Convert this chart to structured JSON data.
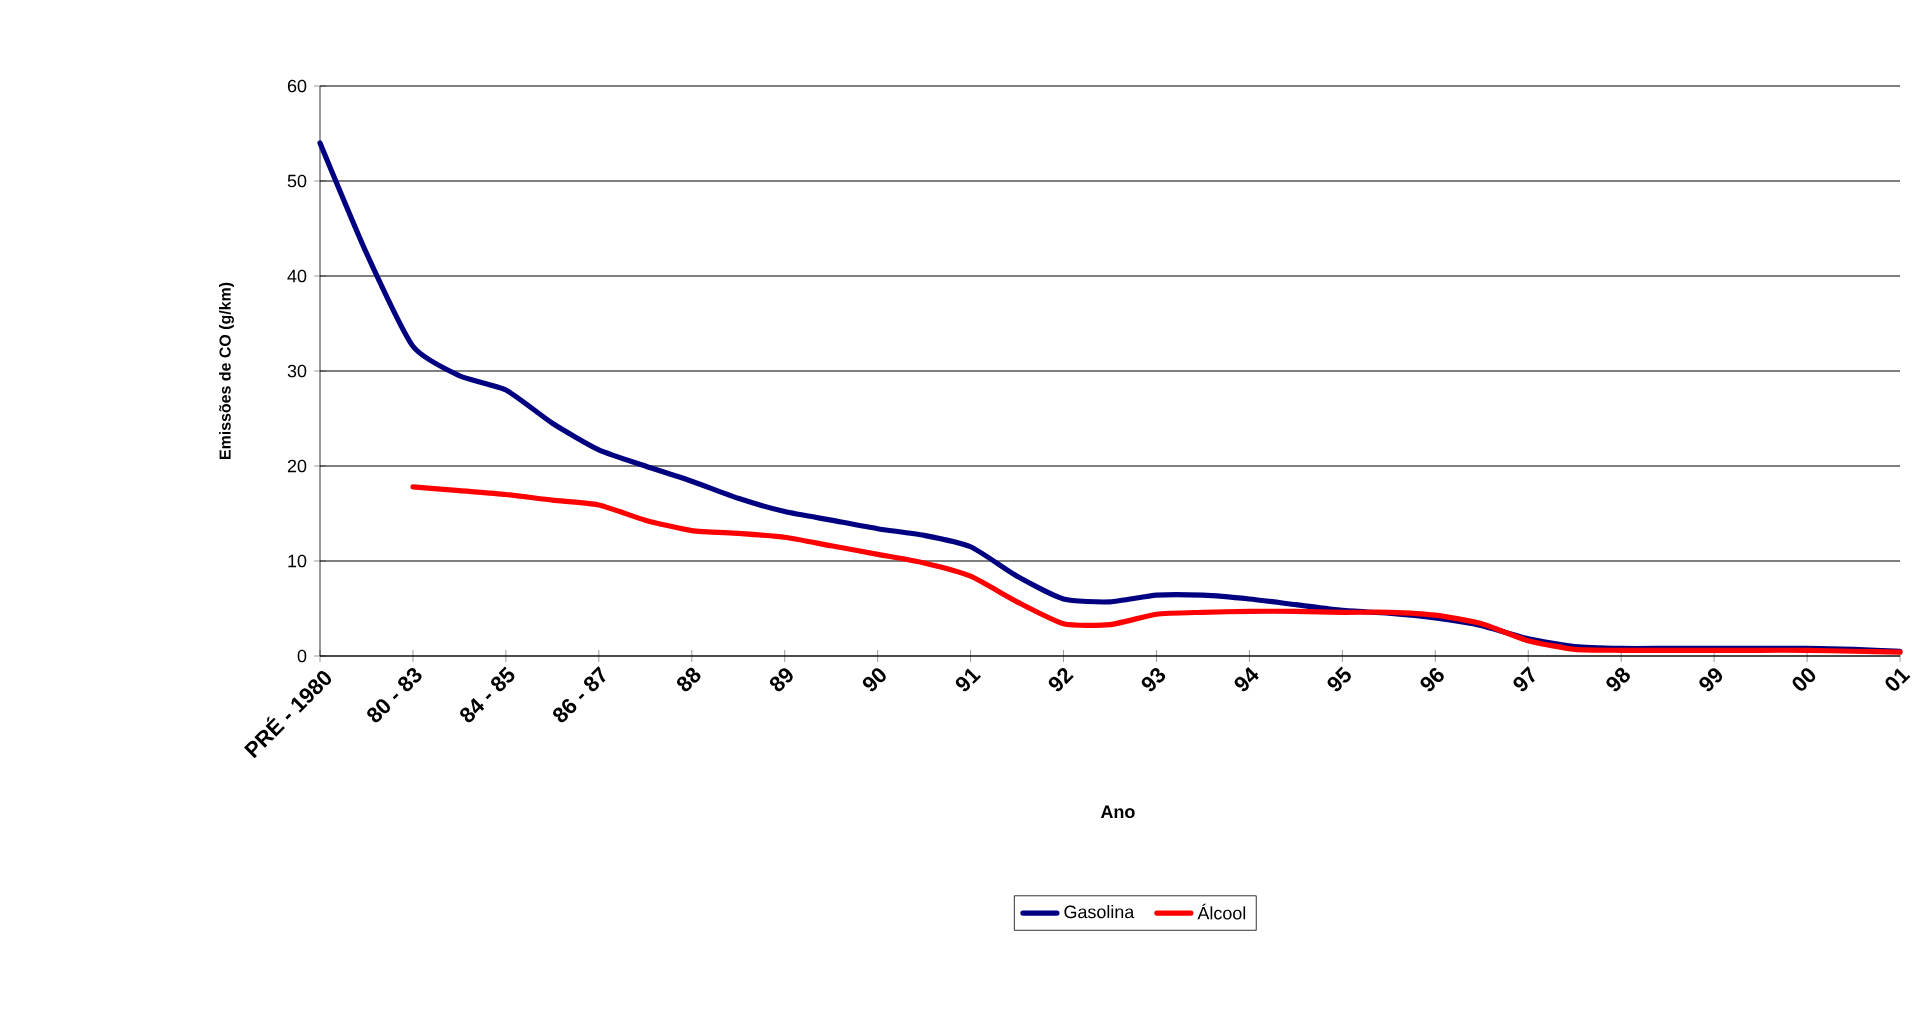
{
  "chart_data": {
    "type": "line",
    "xlabel": "Ano",
    "ylabel": "Emissões de CO (g/km)",
    "categories": [
      "PRÉ - 1980",
      null,
      "80 - 83",
      null,
      "84 - 85",
      null,
      "86 - 87",
      null,
      "88",
      null,
      "89",
      null,
      "90",
      null,
      "91",
      null,
      "92",
      null,
      "93",
      null,
      "94",
      null,
      "95",
      null,
      "96",
      null,
      "97",
      null,
      "98",
      null,
      "99",
      null,
      "00",
      null,
      "01"
    ],
    "series": [
      {
        "name": "Gasolina",
        "color": "#000080",
        "values": [
          54.0,
          42.4,
          32.6,
          29.5,
          28.0,
          24.5,
          21.7,
          20.0,
          18.4,
          16.6,
          15.2,
          14.3,
          13.4,
          12.7,
          11.5,
          8.4,
          6.0,
          5.7,
          6.4,
          6.4,
          6.0,
          5.4,
          4.8,
          4.5,
          4.0,
          3.2,
          1.8,
          1.0,
          0.8,
          0.8,
          0.8,
          0.8,
          0.8,
          0.7,
          0.5
        ]
      },
      {
        "name": "Álcool",
        "color": "#ff0000",
        "values": [
          null,
          null,
          17.8,
          17.4,
          17.0,
          16.4,
          15.9,
          14.3,
          13.2,
          12.9,
          12.5,
          11.6,
          10.7,
          9.8,
          8.4,
          5.7,
          3.4,
          3.3,
          4.4,
          4.6,
          4.7,
          4.7,
          4.6,
          4.6,
          4.3,
          3.4,
          1.6,
          0.7,
          0.6,
          0.6,
          0.6,
          0.6,
          0.6,
          0.5,
          0.4
        ]
      }
    ],
    "ylim": [
      0,
      60
    ],
    "yticks": [
      0,
      10,
      20,
      30,
      40,
      50,
      60
    ],
    "grid": "y",
    "legend": "bottom",
    "marker": "none",
    "line_style": "solid"
  }
}
